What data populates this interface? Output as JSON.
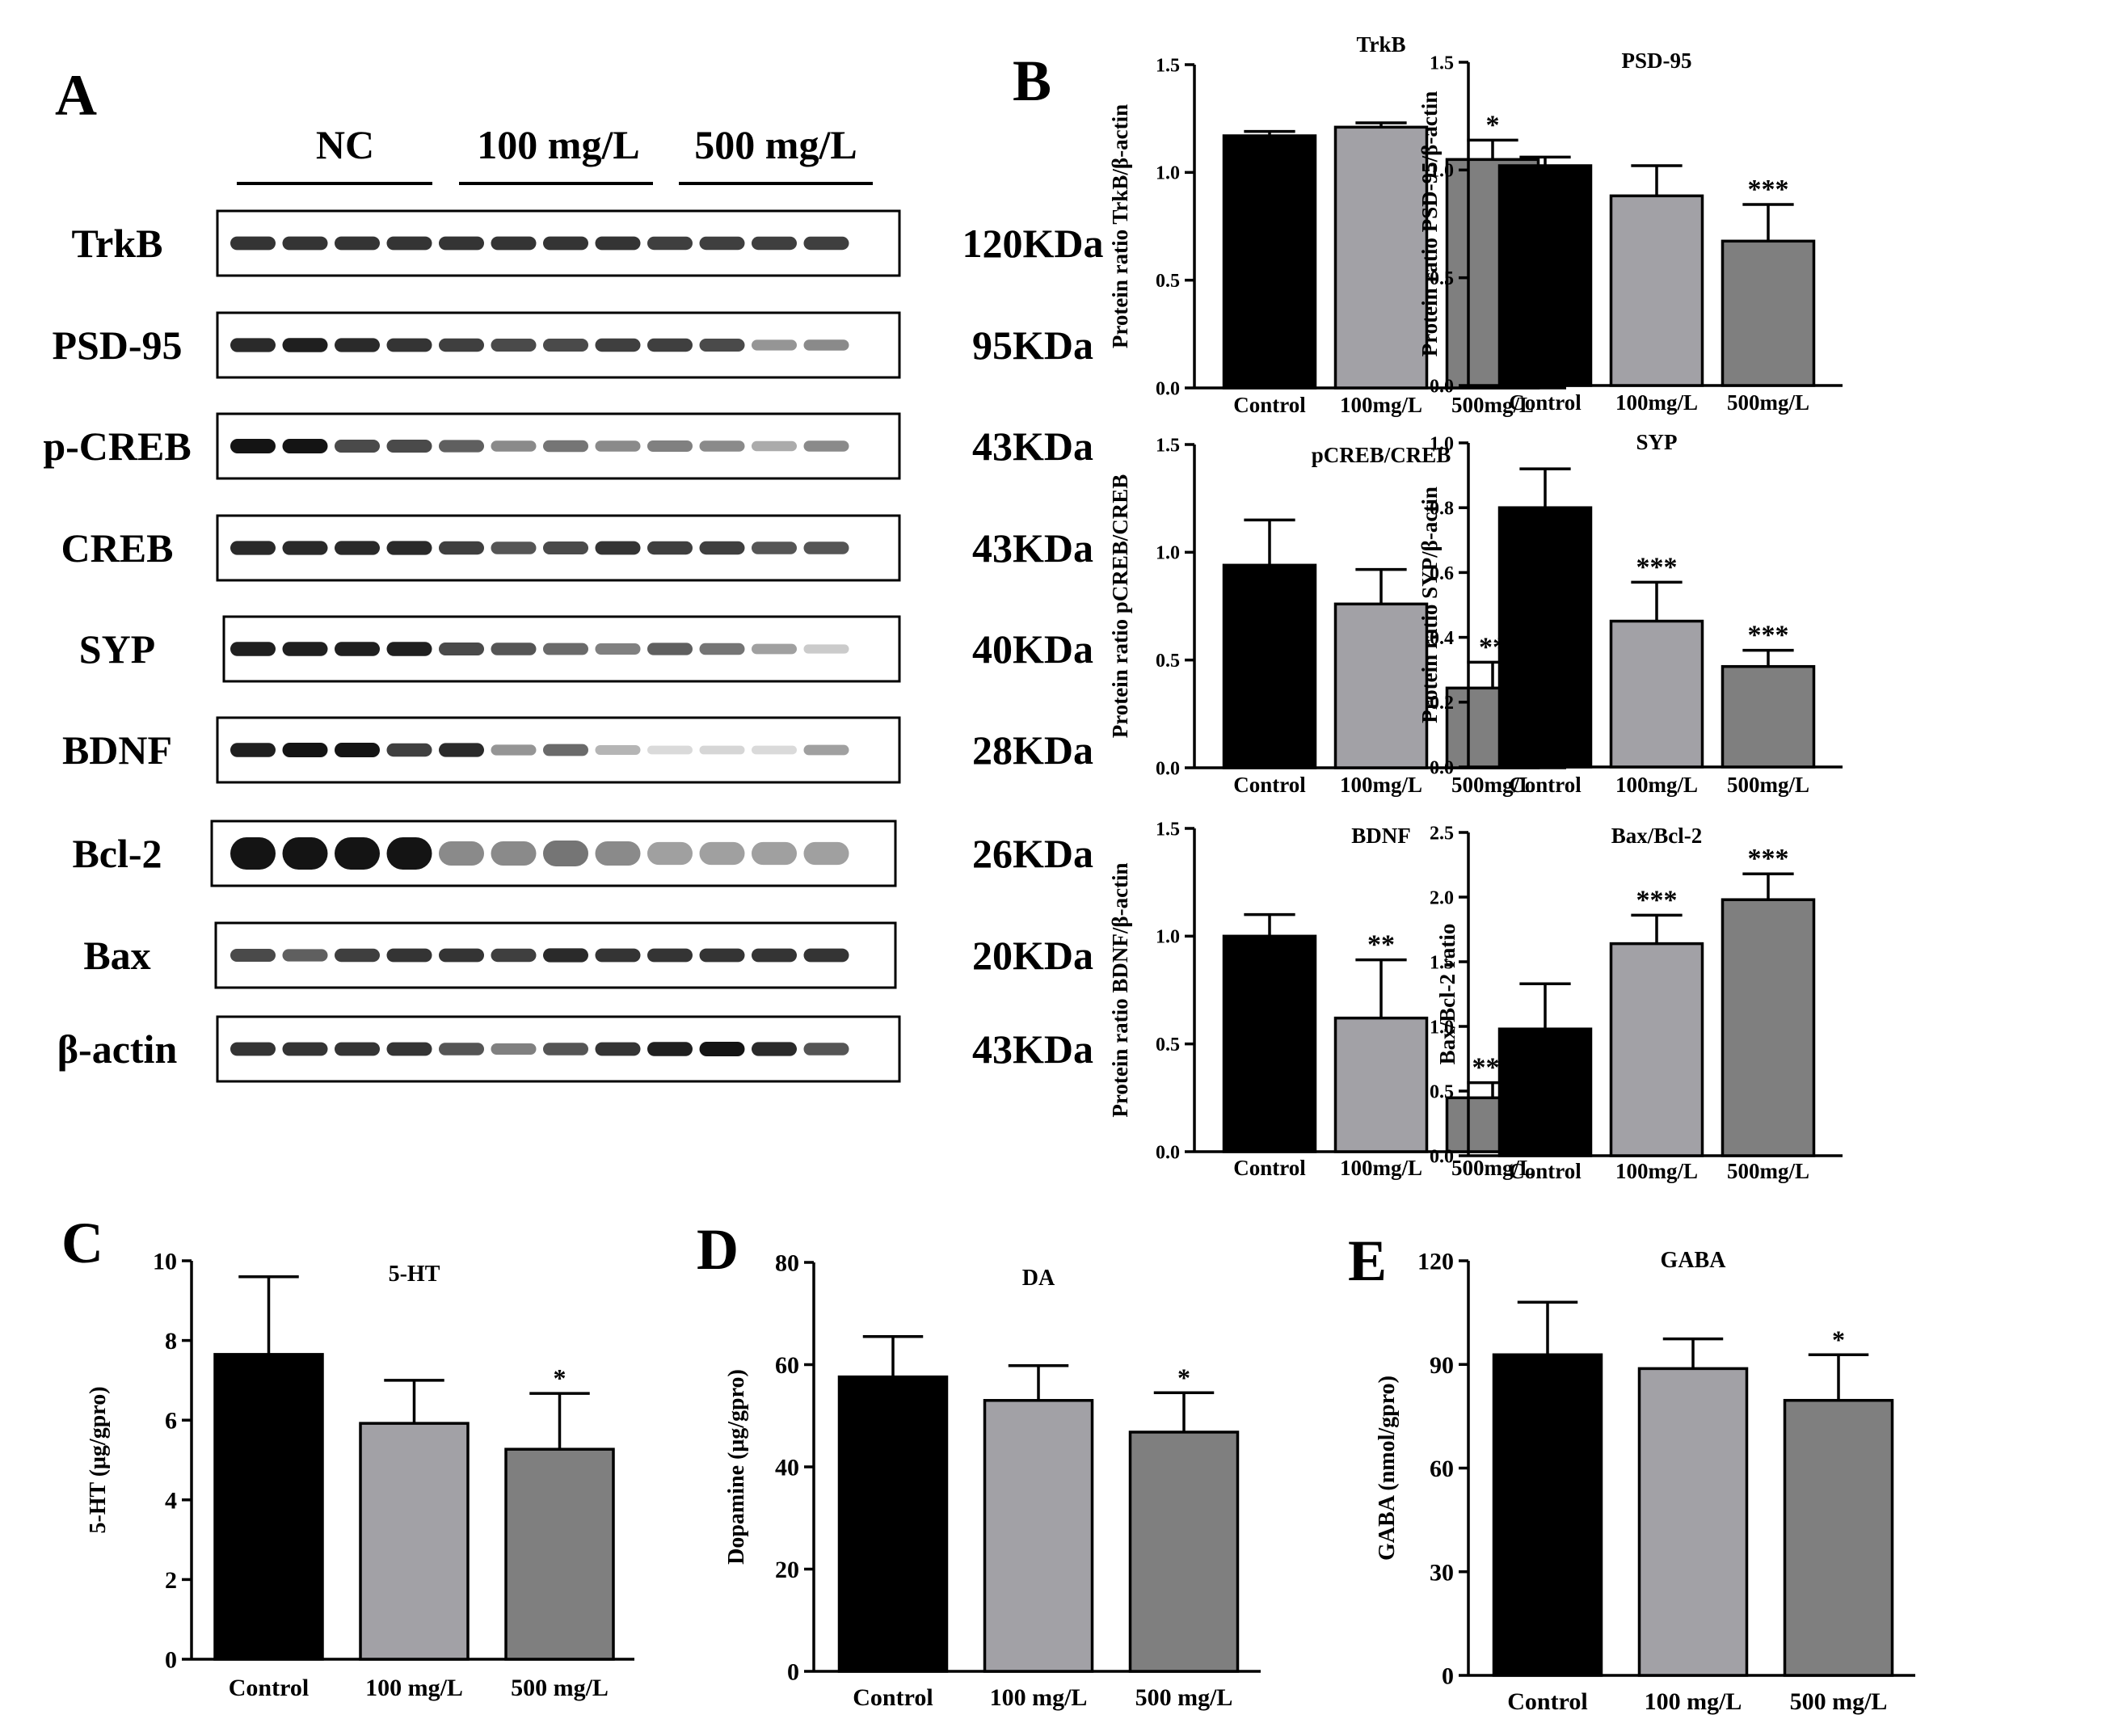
{
  "panel_letters": [
    "A",
    "B",
    "C",
    "D",
    "E"
  ],
  "colors": {
    "control": "#000000",
    "low": "#a2a1a6",
    "high": "#7f7f7f",
    "band": "#151515",
    "frame": "#000000",
    "text": "#000000"
  },
  "western_blot": {
    "groups": [
      {
        "label": "NC",
        "lanes": 4
      },
      {
        "label": "100 mg/L",
        "lanes": 4
      },
      {
        "label": "500 mg/L",
        "lanes": 4
      }
    ],
    "rows": [
      {
        "protein": "TrkB",
        "size": "120KDa",
        "intensity": [
          0.85,
          0.85,
          0.85,
          0.85,
          0.85,
          0.85,
          0.85,
          0.85,
          0.8,
          0.8,
          0.8,
          0.8
        ]
      },
      {
        "protein": "PSD-95",
        "size": "95KDa",
        "intensity": [
          0.9,
          0.95,
          0.9,
          0.85,
          0.8,
          0.75,
          0.75,
          0.8,
          0.8,
          0.75,
          0.4,
          0.45
        ]
      },
      {
        "protein": "p-CREB",
        "size": "43KDa",
        "intensity": [
          1.0,
          1.0,
          0.75,
          0.75,
          0.65,
          0.45,
          0.55,
          0.45,
          0.5,
          0.45,
          0.3,
          0.45
        ]
      },
      {
        "protein": "CREB",
        "size": "43KDa",
        "intensity": [
          0.9,
          0.9,
          0.9,
          0.9,
          0.8,
          0.7,
          0.75,
          0.85,
          0.8,
          0.8,
          0.7,
          0.7
        ]
      },
      {
        "protein": "SYP",
        "size": "40KDa",
        "intensity": [
          0.95,
          0.95,
          0.95,
          0.95,
          0.75,
          0.7,
          0.6,
          0.5,
          0.65,
          0.55,
          0.35,
          0.15
        ]
      },
      {
        "protein": "BDNF",
        "size": "28KDa",
        "intensity": [
          0.95,
          1.0,
          1.0,
          0.8,
          0.9,
          0.4,
          0.6,
          0.25,
          0.08,
          0.1,
          0.08,
          0.35
        ]
      },
      {
        "protein": "Bcl-2",
        "size": "26KDa",
        "intensity": [
          1.0,
          1.0,
          1.0,
          1.0,
          0.45,
          0.45,
          0.55,
          0.45,
          0.35,
          0.35,
          0.35,
          0.35
        ]
      },
      {
        "protein": "Bax",
        "size": "20KDa",
        "intensity": [
          0.75,
          0.65,
          0.8,
          0.85,
          0.85,
          0.8,
          0.9,
          0.85,
          0.85,
          0.85,
          0.85,
          0.85
        ]
      },
      {
        "protein": "β-actin",
        "size": "43KDa",
        "intensity": [
          0.85,
          0.85,
          0.85,
          0.85,
          0.7,
          0.5,
          0.7,
          0.85,
          0.95,
          1.0,
          0.9,
          0.7
        ]
      }
    ]
  },
  "chart_data": [
    {
      "id": "trkb",
      "type": "bar",
      "title": "TrkB",
      "ylabel": "Protein ratio TrkB/β-actin",
      "categories": [
        "Control",
        "100mg/L",
        "500mg/L"
      ],
      "values": [
        1.17,
        1.21,
        1.06
      ],
      "errors": [
        0.02,
        0.02,
        0.09
      ],
      "significance": [
        "",
        "",
        "*"
      ],
      "ylim": [
        0,
        1.5
      ],
      "yticks": [
        0.0,
        0.5,
        1.0,
        1.5
      ],
      "tick_labels": [
        "0.0",
        "0.5",
        "1.0",
        "1.5"
      ]
    },
    {
      "id": "psd95",
      "type": "bar",
      "title": "PSD-95",
      "ylabel": "Protein ratio PSD-95/β-actin",
      "categories": [
        "Control",
        "100mg/L",
        "500mg/L"
      ],
      "values": [
        1.02,
        0.88,
        0.67
      ],
      "errors": [
        0.04,
        0.14,
        0.17
      ],
      "significance": [
        "",
        "",
        "***"
      ],
      "ylim": [
        0,
        1.5
      ],
      "yticks": [
        0.0,
        0.5,
        1.0,
        1.5
      ],
      "tick_labels": [
        "0.0",
        "0.5",
        "1.0",
        "1.5"
      ]
    },
    {
      "id": "pcreb",
      "type": "bar",
      "title": "pCREB/CREB",
      "ylabel": "Protein ratio pCREB/CREB",
      "categories": [
        "Control",
        "100mg/L",
        "500mg/L"
      ],
      "values": [
        0.94,
        0.76,
        0.37
      ],
      "errors": [
        0.21,
        0.16,
        0.12
      ],
      "significance": [
        "",
        "",
        "**"
      ],
      "ylim": [
        0,
        1.5
      ],
      "yticks": [
        0.0,
        0.5,
        1.0,
        1.5
      ],
      "tick_labels": [
        "0.0",
        "0.5",
        "1.0",
        "1.5"
      ]
    },
    {
      "id": "syp",
      "type": "bar",
      "title": "SYP",
      "ylabel": "Protein ratio SYP/β-actin",
      "categories": [
        "Control",
        "100mg/L",
        "500mg/L"
      ],
      "values": [
        0.8,
        0.45,
        0.31
      ],
      "errors": [
        0.12,
        0.12,
        0.05
      ],
      "significance": [
        "",
        "***",
        "***"
      ],
      "ylim": [
        0,
        1.0
      ],
      "yticks": [
        0.0,
        0.2,
        0.4,
        0.6,
        0.8,
        1.0
      ],
      "tick_labels": [
        "0.0",
        "0.2",
        "0.4",
        "0.6",
        "0.8",
        "1.0"
      ]
    },
    {
      "id": "bdnf",
      "type": "bar",
      "title": "BDNF",
      "ylabel": "Protein ratio BDNF/β-actin",
      "categories": [
        "Control",
        "100mg/L",
        "500mg/L"
      ],
      "values": [
        1.0,
        0.62,
        0.25
      ],
      "errors": [
        0.1,
        0.27,
        0.07
      ],
      "significance": [
        "",
        "**",
        "***"
      ],
      "ylim": [
        0,
        1.5
      ],
      "yticks": [
        0.0,
        0.5,
        1.0,
        1.5
      ],
      "tick_labels": [
        "0.0",
        "0.5",
        "1.0",
        "1.5"
      ]
    },
    {
      "id": "baxbcl2",
      "type": "bar",
      "title": "Bax/Bcl-2",
      "ylabel": "Bax/Bcl-2 ratio",
      "categories": [
        "Control",
        "100mg/L",
        "500mg/L"
      ],
      "values": [
        0.98,
        1.64,
        1.98
      ],
      "errors": [
        0.35,
        0.22,
        0.2
      ],
      "significance": [
        "",
        "***",
        "***"
      ],
      "ylim": [
        0,
        2.5
      ],
      "yticks": [
        0.0,
        0.5,
        1.0,
        1.5,
        2.0,
        2.5
      ],
      "tick_labels": [
        "0.0",
        "0.5",
        "1.0",
        "1.5",
        "2.0",
        "2.5"
      ]
    },
    {
      "id": "serotonin",
      "type": "bar",
      "title": "5-HT",
      "ylabel": "5-HT (μg/gpro)",
      "categories": [
        "Control",
        "100 mg/L",
        "500 mg/L"
      ],
      "values": [
        7.65,
        5.92,
        5.27
      ],
      "errors": [
        1.95,
        1.08,
        1.4
      ],
      "significance": [
        "",
        "",
        "*"
      ],
      "ylim": [
        0,
        10
      ],
      "yticks": [
        0,
        2,
        4,
        6,
        8,
        10
      ],
      "tick_labels": [
        "0",
        "2",
        "4",
        "6",
        "8",
        "10"
      ]
    },
    {
      "id": "dopamine",
      "type": "bar",
      "title": "DA",
      "ylabel": "Dopamine (μg/gpro)",
      "categories": [
        "Control",
        "100 mg/L",
        "500 mg/L"
      ],
      "values": [
        57.6,
        53.0,
        46.8
      ],
      "errors": [
        7.9,
        6.8,
        7.7
      ],
      "significance": [
        "",
        "",
        "*"
      ],
      "ylim": [
        0,
        80
      ],
      "yticks": [
        0,
        20,
        40,
        60,
        80
      ],
      "tick_labels": [
        "0",
        "20",
        "40",
        "60",
        "80"
      ]
    },
    {
      "id": "gaba",
      "type": "bar",
      "title": "GABA",
      "ylabel": "GABA (nmol/gpro)",
      "categories": [
        "Control",
        "100 mg/L",
        "500 mg/L"
      ],
      "values": [
        92.8,
        88.8,
        79.6
      ],
      "errors": [
        15.2,
        8.6,
        13.2
      ],
      "significance": [
        "",
        "",
        "*"
      ],
      "ylim": [
        0,
        120
      ],
      "yticks": [
        0,
        30,
        60,
        90,
        120
      ],
      "tick_labels": [
        "0",
        "30",
        "60",
        "90",
        "120"
      ]
    }
  ]
}
